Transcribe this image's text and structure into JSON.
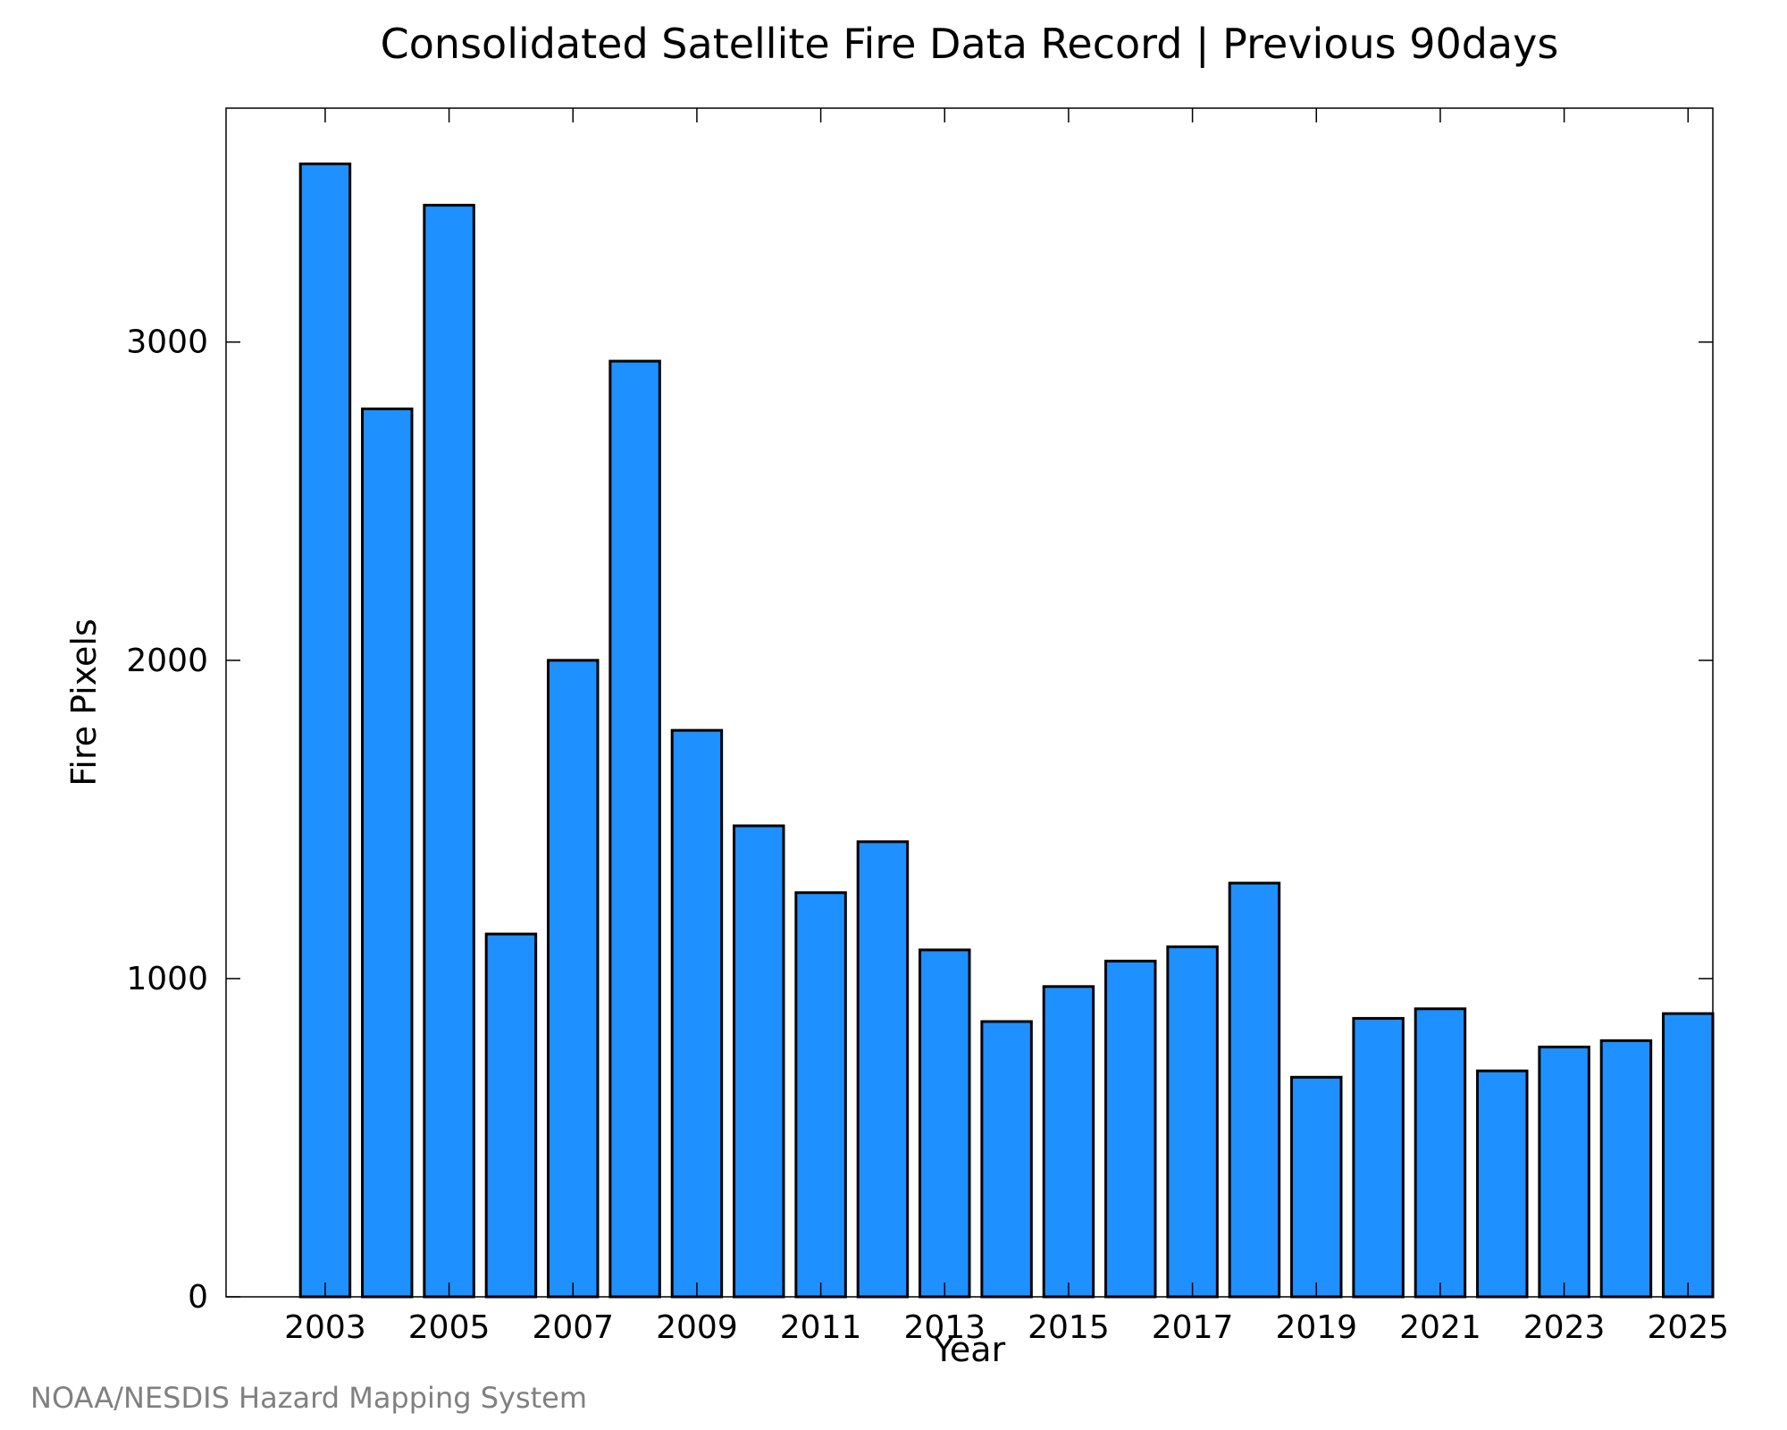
{
  "chart_data": {
    "type": "bar",
    "title": "Consolidated Satellite Fire Data Record | Previous 90days",
    "xlabel": "Year",
    "ylabel": "Fire Pixels",
    "credit": "NOAA/NESDIS Hazard Mapping System",
    "categories": [
      2003,
      2004,
      2005,
      2006,
      2007,
      2008,
      2009,
      2010,
      2011,
      2012,
      2013,
      2014,
      2015,
      2016,
      2017,
      2018,
      2019,
      2020,
      2021,
      2022,
      2023,
      2024,
      2025
    ],
    "values": [
      3560,
      2790,
      3430,
      1140,
      2000,
      2940,
      1780,
      1480,
      1270,
      1430,
      1090,
      865,
      975,
      1055,
      1100,
      1300,
      690,
      875,
      905,
      710,
      785,
      805,
      890
    ],
    "x_tick_labels": [
      "2003",
      "2005",
      "2007",
      "2009",
      "2011",
      "2013",
      "2015",
      "2017",
      "2019",
      "2021",
      "2023",
      "2025"
    ],
    "y_ticks": [
      0,
      1000,
      2000,
      3000
    ],
    "y_tick_labels": [
      "0",
      "1000",
      "2000",
      "3000"
    ],
    "ylim": [
      0,
      3735
    ],
    "xlim": [
      2001.4,
      2025.4
    ],
    "bar_color": "#1e90ff",
    "grid": false,
    "legend": "none"
  }
}
